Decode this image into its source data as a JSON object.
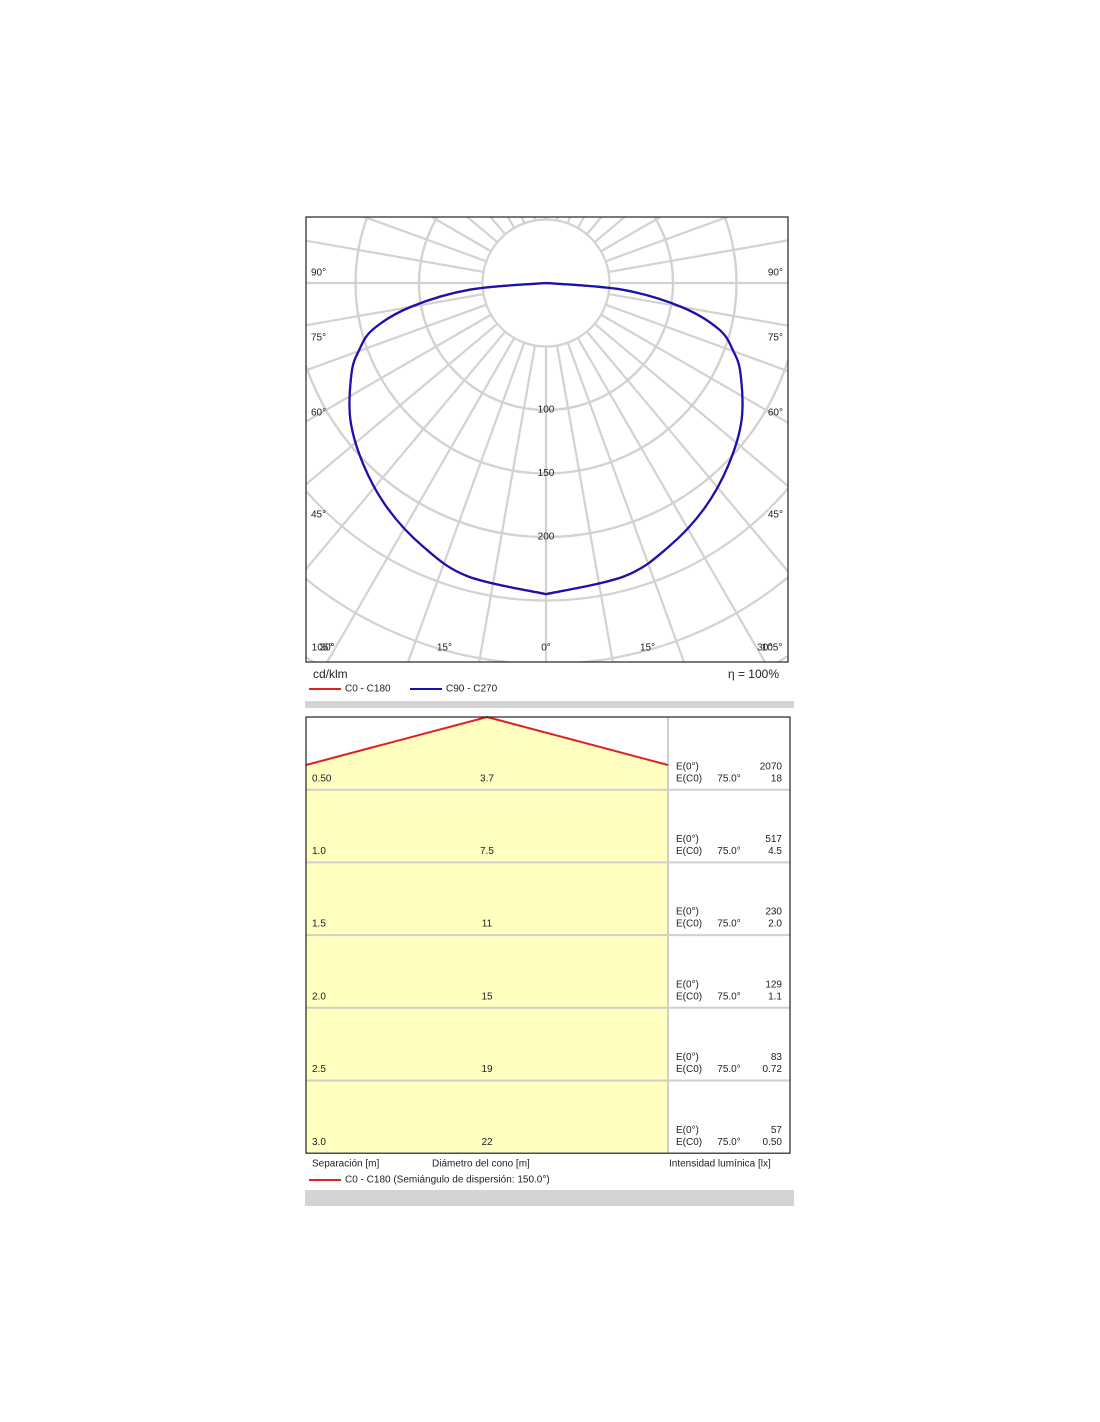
{
  "chart_data": [
    {
      "type": "polar",
      "unit_label": "cd/klm",
      "efficiency_label": "η = 100%",
      "angles": [
        0,
        15,
        25,
        35,
        45,
        55,
        65,
        70,
        75,
        80,
        85,
        90
      ],
      "series": [
        {
          "name": "C0 - C180",
          "color": "#e02020",
          "values": [
            245,
            239,
            229,
            217,
            203,
            188,
            169,
            157,
            141,
            108,
            60,
            0
          ]
        },
        {
          "name": "C90 - C270",
          "color": "#1414b4",
          "values": [
            245,
            239,
            229,
            217,
            203,
            188,
            169,
            157,
            141,
            108,
            60,
            0
          ]
        }
      ],
      "rticks": [
        100,
        150,
        200
      ],
      "angle_ticks": [
        {
          "value": 0,
          "label": "0°"
        },
        {
          "value": 15,
          "label": "15°"
        },
        {
          "value": 30,
          "label": "30°"
        },
        {
          "value": 45,
          "label": "45°"
        },
        {
          "value": 60,
          "label": "60°"
        },
        {
          "value": 75,
          "label": "75°"
        },
        {
          "value": 90,
          "label": "90°"
        },
        {
          "value": 105,
          "label": "105°"
        }
      ],
      "grid": true
    },
    {
      "type": "cone",
      "legend": {
        "name": "C0 - C180 (Semiángulo de dispersión: 150.0°)",
        "color": "#e02020"
      },
      "columns": [
        "Separación [m]",
        "Diámetro del cono [m]",
        "Intensidad lumínica [lx]"
      ],
      "rows": [
        {
          "separation": "0.50",
          "diameter": "3.7",
          "e0_label": "E(0°)",
          "e0": "2070",
          "ec0_label": "E(C0)",
          "angle": "75.0°",
          "ec0": "18"
        },
        {
          "separation": "1.0",
          "diameter": "7.5",
          "e0_label": "E(0°)",
          "e0": "517",
          "ec0_label": "E(C0)",
          "angle": "75.0°",
          "ec0": "4.5"
        },
        {
          "separation": "1.5",
          "diameter": "11",
          "e0_label": "E(0°)",
          "e0": "230",
          "ec0_label": "E(C0)",
          "angle": "75.0°",
          "ec0": "2.0"
        },
        {
          "separation": "2.0",
          "diameter": "15",
          "e0_label": "E(0°)",
          "e0": "129",
          "ec0_label": "E(C0)",
          "angle": "75.0°",
          "ec0": "1.1"
        },
        {
          "separation": "2.5",
          "diameter": "19",
          "e0_label": "E(0°)",
          "e0": "83",
          "ec0_label": "E(C0)",
          "angle": "75.0°",
          "ec0": "0.72"
        },
        {
          "separation": "3.0",
          "diameter": "22",
          "e0_label": "E(0°)",
          "e0": "57",
          "ec0_label": "E(C0)",
          "angle": "75.0°",
          "ec0": "0.50"
        }
      ]
    }
  ]
}
